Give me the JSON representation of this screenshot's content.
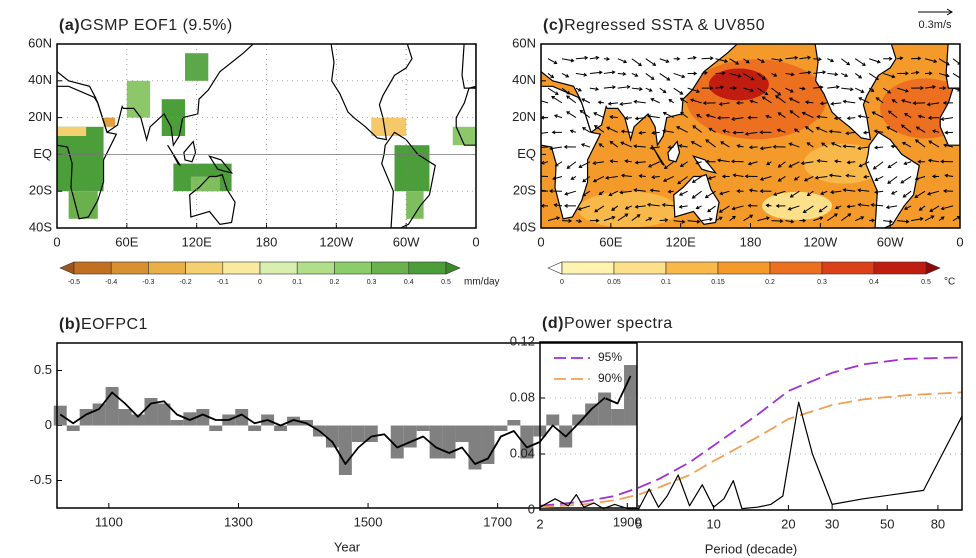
{
  "chart_data": [
    {
      "type": "map",
      "panel": "(a)",
      "title": "GSMP EOF1 (9.5%)",
      "xlim": [
        0,
        360
      ],
      "ylim": [
        -40,
        60
      ],
      "xticks": [
        0,
        {
          "value": 60,
          "label": "60E"
        },
        {
          "value": 120,
          "label": "120E"
        },
        180,
        {
          "value": 240,
          "label": "120W"
        },
        {
          "value": 300,
          "label": "60W"
        },
        {
          "value": 360,
          "label": "0"
        }
      ],
      "yticks": [
        {
          "value": -40,
          "label": "40S"
        },
        {
          "value": -20,
          "label": "20S"
        },
        {
          "value": 0,
          "label": "EQ"
        },
        {
          "value": 20,
          "label": "20N"
        },
        {
          "value": 40,
          "label": "40N"
        },
        {
          "value": 60,
          "label": "60N"
        }
      ],
      "grid": "both",
      "colorbar": {
        "ticks": [
          -0.5,
          -0.4,
          -0.3,
          -0.2,
          -0.1,
          0,
          0.1,
          0.2,
          0.3,
          0.4,
          0.5
        ],
        "colors": [
          "#a0561a",
          "#c07020",
          "#d89030",
          "#eab048",
          "#f4d070",
          "#faeaa0",
          "#d8efb0",
          "#b0de8a",
          "#8ccc6a",
          "#6ab34c",
          "#4c9e3a",
          "#3a8a2a"
        ],
        "unit": "mm/day"
      }
    },
    {
      "type": "bar",
      "panel": "(b)",
      "title": "EOFPC1",
      "xlabel": "Year",
      "xlim": [
        1020,
        1915
      ],
      "ylim": [
        -0.75,
        0.75
      ],
      "xticks": [
        1100,
        1300,
        1500,
        1700,
        1900
      ],
      "yticks": [
        -0.5,
        0,
        0.5
      ],
      "x": [
        1025,
        1045,
        1065,
        1085,
        1105,
        1125,
        1145,
        1165,
        1185,
        1205,
        1225,
        1245,
        1265,
        1285,
        1305,
        1325,
        1345,
        1365,
        1385,
        1405,
        1425,
        1445,
        1465,
        1485,
        1505,
        1525,
        1545,
        1565,
        1585,
        1605,
        1625,
        1645,
        1665,
        1685,
        1705,
        1725,
        1745,
        1765,
        1785,
        1805,
        1825,
        1845,
        1865,
        1885,
        1905
      ],
      "series": [
        {
          "type": "bar",
          "color": "#808080",
          "values": [
            0.18,
            -0.05,
            0.15,
            0.2,
            0.35,
            0.15,
            0.1,
            0.25,
            0.2,
            0.05,
            0.12,
            0.15,
            -0.05,
            0.1,
            0.15,
            -0.05,
            0.1,
            -0.05,
            0.08,
            0.05,
            -0.1,
            -0.2,
            -0.45,
            -0.15,
            -0.15,
            0,
            -0.3,
            -0.2,
            -0.05,
            -0.3,
            -0.3,
            -0.15,
            -0.4,
            -0.35,
            -0.05,
            0.05,
            -0.3,
            -0.1,
            0.1,
            -0.2,
            0.1,
            0.2,
            0.3,
            0.15,
            0.55
          ]
        },
        {
          "type": "line",
          "color": "#000000",
          "values": [
            0.1,
            0.02,
            0.1,
            0.15,
            0.3,
            0.2,
            0.08,
            0.2,
            0.22,
            0.1,
            0.05,
            0.1,
            0.05,
            0.05,
            0.1,
            0.02,
            0.05,
            0,
            0.05,
            0.02,
            -0.05,
            -0.15,
            -0.35,
            -0.2,
            -0.1,
            -0.08,
            -0.2,
            -0.15,
            -0.1,
            -0.2,
            -0.25,
            -0.2,
            -0.35,
            -0.3,
            -0.1,
            -0.05,
            -0.2,
            -0.15,
            0,
            -0.1,
            0.02,
            0.15,
            0.25,
            0.2,
            0.45
          ]
        }
      ]
    },
    {
      "type": "map",
      "panel": "(c)",
      "title": "Regressed SSTA & UV850",
      "vector_reference": "0.3m/s",
      "xlim": [
        0,
        360
      ],
      "ylim": [
        -40,
        60
      ],
      "xticks": [
        0,
        {
          "value": 60,
          "label": "60E"
        },
        {
          "value": 120,
          "label": "120E"
        },
        180,
        {
          "value": 240,
          "label": "120W"
        },
        {
          "value": 300,
          "label": "60W"
        },
        {
          "value": 360,
          "label": "0"
        }
      ],
      "yticks": [
        {
          "value": -40,
          "label": "40S"
        },
        {
          "value": -20,
          "label": "20S"
        },
        {
          "value": 0,
          "label": "EQ"
        },
        {
          "value": 20,
          "label": "20N"
        },
        {
          "value": 40,
          "label": "40N"
        },
        {
          "value": 60,
          "label": "60N"
        }
      ],
      "grid": "none",
      "colorbar": {
        "ticks": [
          0,
          0.05,
          0.1,
          0.15,
          0.2,
          0.3,
          0.4,
          0.5
        ],
        "colors": [
          "#ffffff",
          "#fff3b0",
          "#fde08a",
          "#f9b84a",
          "#f39a2a",
          "#ec7020",
          "#dc4018",
          "#c01c10",
          "#900808"
        ],
        "unit": "°C"
      }
    },
    {
      "type": "line",
      "panel": "(d)",
      "title": "Power spectra",
      "xlabel": "Period (decade)",
      "xscale": "log",
      "xlim": [
        2,
        100
      ],
      "ylim": [
        0,
        0.12
      ],
      "xticks": [
        2,
        5,
        10,
        20,
        30,
        50,
        80
      ],
      "yticks": [
        0,
        0.04,
        0.08,
        0.12
      ],
      "grid": "y",
      "legend": "upper left",
      "series": [
        {
          "name": "95%",
          "color": "#a030d0",
          "style": "dashed",
          "x": [
            2,
            3,
            4,
            5,
            6,
            8,
            10,
            15,
            20,
            30,
            40,
            60,
            100
          ],
          "values": [
            0.003,
            0.006,
            0.01,
            0.016,
            0.022,
            0.034,
            0.046,
            0.068,
            0.085,
            0.098,
            0.104,
            0.108,
            0.109
          ]
        },
        {
          "name": "90%",
          "color": "#f0a050",
          "style": "dashed",
          "x": [
            2,
            3,
            4,
            5,
            6,
            8,
            10,
            15,
            20,
            30,
            40,
            60,
            100
          ],
          "values": [
            0.002,
            0.004,
            0.007,
            0.011,
            0.016,
            0.025,
            0.035,
            0.052,
            0.065,
            0.075,
            0.079,
            0.082,
            0.084
          ]
        },
        {
          "color": "#000000",
          "style": "solid",
          "x": [
            2,
            2.3,
            2.6,
            2.8,
            3,
            3.3,
            3.6,
            4,
            4.5,
            5,
            5.5,
            6,
            6.5,
            7.2,
            8,
            9,
            10,
            11,
            12,
            13,
            15,
            17,
            19,
            22,
            25,
            30,
            40,
            70,
            100
          ],
          "values": [
            0.002,
            0.008,
            0.003,
            0.011,
            0.002,
            0.005,
            0.001,
            0.004,
            0.001,
            0.001,
            0.015,
            0.002,
            0.01,
            0.025,
            0.003,
            0.018,
            0.002,
            0.008,
            0.021,
            0.001,
            0.002,
            0.004,
            0.01,
            0.077,
            0.04,
            0.004,
            0.008,
            0.014,
            0.067
          ]
        }
      ]
    }
  ]
}
